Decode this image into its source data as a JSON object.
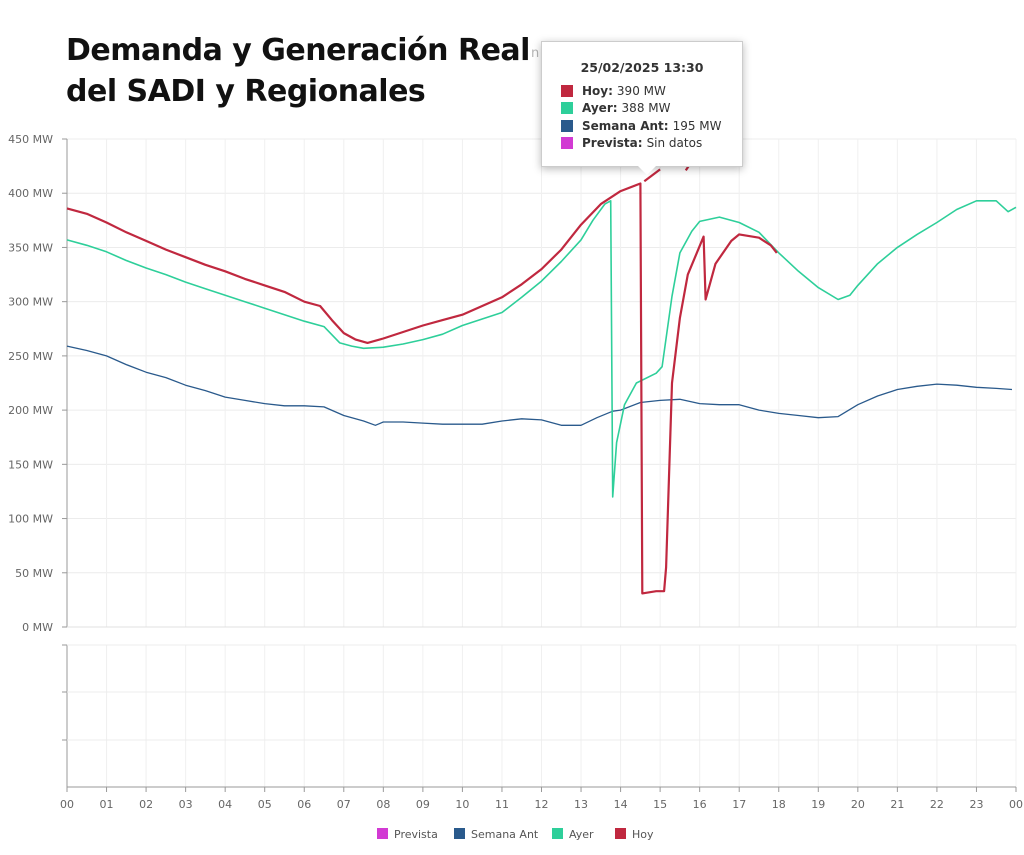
{
  "title": {
    "line1": "Demanda y Generación Real",
    "line2": "del SADI y Regionales"
  },
  "ghost_text": "n",
  "tooltip": {
    "time": "25/02/2025 13:30",
    "rows": [
      {
        "label": "Hoy:",
        "value": "390 MW",
        "color": "#c0283f"
      },
      {
        "label": "Ayer:",
        "value": "388 MW",
        "color": "#2ecf9a"
      },
      {
        "label": "Semana Ant:",
        "value": "195 MW",
        "color": "#2a5a8c"
      },
      {
        "label": "Prevista:",
        "value": "Sin datos",
        "color": "#d23ad3"
      }
    ]
  },
  "chart_data": {
    "type": "line",
    "title": "Demanda y Generación Real del SADI y Regionales",
    "xlabel": "",
    "ylabel": "",
    "x_unit": "hour",
    "xlim": [
      0,
      24
    ],
    "ylim": [
      0,
      450
    ],
    "y_ticks": [
      0,
      50,
      100,
      150,
      200,
      250,
      300,
      350,
      400,
      450
    ],
    "y_tick_labels": [
      "0 MW",
      "50 MW",
      "100 MW",
      "150 MW",
      "200 MW",
      "250 MW",
      "300 MW",
      "350 MW",
      "400 MW",
      "450 MW"
    ],
    "x_tick_labels": [
      "00",
      "01",
      "02",
      "03",
      "04",
      "05",
      "06",
      "07",
      "08",
      "09",
      "10",
      "11",
      "12",
      "13",
      "14",
      "15",
      "16",
      "17",
      "18",
      "19",
      "20",
      "21",
      "22",
      "23",
      "00"
    ],
    "series": [
      {
        "name": "Semana Ant",
        "color": "#2a5a8c",
        "points": [
          [
            0,
            259
          ],
          [
            0.5,
            255
          ],
          [
            1,
            250
          ],
          [
            1.5,
            242
          ],
          [
            2,
            235
          ],
          [
            2.5,
            230
          ],
          [
            3,
            223
          ],
          [
            3.5,
            218
          ],
          [
            4,
            212
          ],
          [
            4.5,
            209
          ],
          [
            5,
            206
          ],
          [
            5.5,
            204
          ],
          [
            6,
            204
          ],
          [
            6.5,
            203
          ],
          [
            7,
            195
          ],
          [
            7.5,
            190
          ],
          [
            7.8,
            186
          ],
          [
            8,
            189
          ],
          [
            8.5,
            189
          ],
          [
            9,
            188
          ],
          [
            9.5,
            187
          ],
          [
            10,
            187
          ],
          [
            10.5,
            187
          ],
          [
            11,
            190
          ],
          [
            11.5,
            192
          ],
          [
            12,
            191
          ],
          [
            12.5,
            186
          ],
          [
            13,
            186
          ],
          [
            13.4,
            193
          ],
          [
            13.8,
            199
          ],
          [
            14,
            200
          ],
          [
            14.5,
            207
          ],
          [
            15,
            209
          ],
          [
            15.5,
            210
          ],
          [
            16,
            206
          ],
          [
            16.5,
            205
          ],
          [
            17,
            205
          ],
          [
            17.5,
            200
          ],
          [
            18,
            197
          ],
          [
            18.5,
            195
          ],
          [
            19,
            193
          ],
          [
            19.5,
            194
          ],
          [
            20,
            205
          ],
          [
            20.5,
            213
          ],
          [
            21,
            219
          ],
          [
            21.5,
            222
          ],
          [
            22,
            224
          ],
          [
            22.5,
            223
          ],
          [
            23,
            221
          ],
          [
            23.5,
            220
          ],
          [
            23.9,
            219
          ]
        ]
      },
      {
        "name": "Ayer",
        "color": "#2ecf9a",
        "points": [
          [
            0,
            357
          ],
          [
            0.5,
            352
          ],
          [
            1,
            346
          ],
          [
            1.5,
            338
          ],
          [
            2,
            331
          ],
          [
            2.5,
            325
          ],
          [
            3,
            318
          ],
          [
            3.5,
            312
          ],
          [
            4,
            306
          ],
          [
            4.5,
            300
          ],
          [
            5,
            294
          ],
          [
            5.5,
            288
          ],
          [
            6,
            282
          ],
          [
            6.5,
            277
          ],
          [
            6.9,
            262
          ],
          [
            7.2,
            259
          ],
          [
            7.5,
            257
          ],
          [
            8,
            258
          ],
          [
            8.5,
            261
          ],
          [
            9,
            265
          ],
          [
            9.5,
            270
          ],
          [
            10,
            278
          ],
          [
            10.5,
            284
          ],
          [
            11,
            290
          ],
          [
            11.5,
            304
          ],
          [
            12,
            319
          ],
          [
            12.5,
            337
          ],
          [
            13,
            357
          ],
          [
            13.3,
            375
          ],
          [
            13.6,
            390
          ],
          [
            13.75,
            393
          ],
          [
            13.8,
            120
          ],
          [
            13.9,
            170
          ],
          [
            14.1,
            205
          ],
          [
            14.4,
            225
          ],
          [
            14.9,
            234
          ],
          [
            15.05,
            240
          ],
          [
            15.3,
            305
          ],
          [
            15.5,
            345
          ],
          [
            15.8,
            365
          ],
          [
            16,
            374
          ],
          [
            16.5,
            378
          ],
          [
            17,
            373
          ],
          [
            17.5,
            364
          ],
          [
            18,
            345
          ],
          [
            18.5,
            328
          ],
          [
            19,
            313
          ],
          [
            19.5,
            302
          ],
          [
            19.8,
            306
          ],
          [
            20,
            315
          ],
          [
            20.5,
            335
          ],
          [
            21,
            350
          ],
          [
            21.5,
            362
          ],
          [
            22,
            373
          ],
          [
            22.5,
            385
          ],
          [
            23,
            393
          ],
          [
            23.5,
            393
          ],
          [
            23.8,
            383
          ],
          [
            24,
            387
          ]
        ]
      },
      {
        "name": "Hoy",
        "color": "#c0283f",
        "points": [
          [
            0,
            386
          ],
          [
            0.5,
            381
          ],
          [
            1,
            373
          ],
          [
            1.5,
            364
          ],
          [
            2,
            356
          ],
          [
            2.5,
            348
          ],
          [
            3,
            341
          ],
          [
            3.5,
            334
          ],
          [
            4,
            328
          ],
          [
            4.5,
            321
          ],
          [
            5,
            315
          ],
          [
            5.5,
            309
          ],
          [
            6,
            300
          ],
          [
            6.4,
            296
          ],
          [
            6.7,
            283
          ],
          [
            7,
            271
          ],
          [
            7.3,
            265
          ],
          [
            7.6,
            262
          ],
          [
            8,
            266
          ],
          [
            8.5,
            272
          ],
          [
            9,
            278
          ],
          [
            9.5,
            283
          ],
          [
            10,
            288
          ],
          [
            10.5,
            296
          ],
          [
            11,
            304
          ],
          [
            11.5,
            316
          ],
          [
            12,
            330
          ],
          [
            12.5,
            348
          ],
          [
            13,
            371
          ],
          [
            13.5,
            390
          ],
          [
            14,
            402
          ],
          [
            14.5,
            409
          ],
          [
            14.55,
            31
          ],
          [
            14.9,
            33
          ],
          [
            15.1,
            33
          ],
          [
            15.15,
            55
          ],
          [
            15.3,
            225
          ],
          [
            15.5,
            285
          ],
          [
            15.7,
            325
          ],
          [
            16.1,
            360
          ],
          [
            16.15,
            302
          ],
          [
            16.4,
            335
          ],
          [
            16.8,
            356
          ],
          [
            17,
            362
          ],
          [
            17.5,
            359
          ],
          [
            17.8,
            352
          ],
          [
            17.95,
            345
          ]
        ]
      },
      {
        "name": "Hoy",
        "color": "#c0283f",
        "segment": "behind-tooltip",
        "points": [
          [
            14.6,
            411
          ],
          [
            15.0,
            422
          ]
        ]
      },
      {
        "name": "Hoy",
        "color": "#c0283f",
        "segment": "behind-tooltip",
        "points": [
          [
            15.65,
            421
          ],
          [
            15.72,
            425
          ]
        ]
      }
    ],
    "legend": [
      "Prevista",
      "Semana Ant",
      "Ayer",
      "Hoy"
    ],
    "legend_colors": [
      "#d23ad3",
      "#2a5a8c",
      "#2ecf9a",
      "#c0283f"
    ],
    "legend_position": "bottom-center",
    "grid": true
  }
}
